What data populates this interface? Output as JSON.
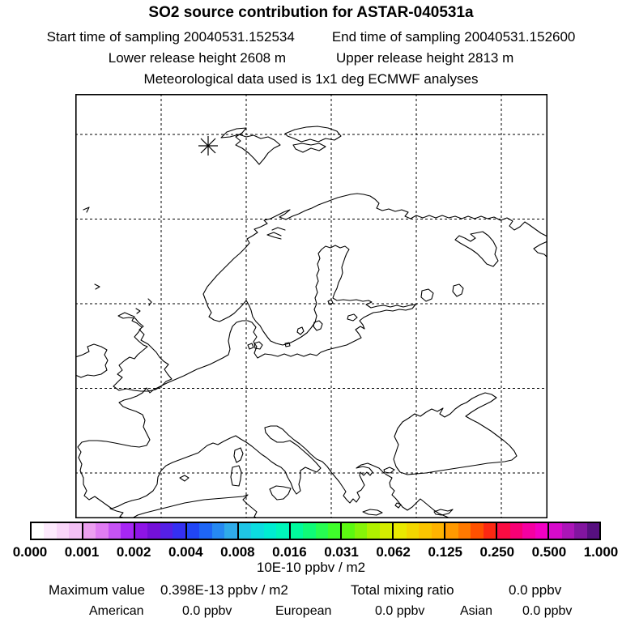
{
  "header": {
    "title": "SO2 source contribution for ASTAR-040531a",
    "start_time": "Start time of sampling 20040531.152534",
    "end_time": "End time of sampling 20040531.152600",
    "lower_release": "Lower release height 2608 m",
    "upper_release": "Upper release height 2813 m",
    "met_data": "Meteorological data used is 1x1 deg ECMWF analyses"
  },
  "map": {
    "marker_name": "release-location-asterisk",
    "grid_style": "dashed",
    "coastline_color": "#000000"
  },
  "colorbar": {
    "tick_labels": [
      "0.000",
      "0.001",
      "0.002",
      "0.004",
      "0.008",
      "0.016",
      "0.031",
      "0.062",
      "0.125",
      "0.250",
      "0.500",
      "1.000"
    ],
    "unit_label": "10E-10 ppbv / m2",
    "segment_colors": [
      [
        "#ffffff",
        "#fdeafd",
        "#f9d6f9",
        "#f3c0f5"
      ],
      [
        "#ec9ff0",
        "#e07cf2",
        "#c653f4",
        "#a727f4"
      ],
      [
        "#8e14e6",
        "#7410d8",
        "#5520e6",
        "#3530f2"
      ],
      [
        "#2146f5",
        "#1e66f6",
        "#2689f2",
        "#2fabe9"
      ],
      [
        "#1fc5e6",
        "#0cdce0",
        "#00ecd2",
        "#00f6ba"
      ],
      [
        "#00fa9d",
        "#0ffb77",
        "#27fd51",
        "#3ffe2b"
      ],
      [
        "#5cf911",
        "#86f408",
        "#b0f000",
        "#d4ed00"
      ],
      [
        "#e9e900",
        "#f2d700",
        "#fbc500",
        "#ffb300"
      ],
      [
        "#ff9900",
        "#ff7900",
        "#ff5100",
        "#fc2812"
      ],
      [
        "#fa0c42",
        "#f80075",
        "#f500a1",
        "#f200c4"
      ],
      [
        "#d60bcb",
        "#ab15b8",
        "#8215a0",
        "#571080"
      ]
    ]
  },
  "stats": {
    "maximum_value_label": "Maximum value",
    "maximum_value": "0.398E-13 ppbv / m2",
    "total_mixing_ratio_label": "Total mixing ratio",
    "total_mixing_ratio_value": "0.0 ppbv",
    "regions": [
      {
        "label": "American",
        "value": "0.0 ppbv"
      },
      {
        "label": "European",
        "value": "0.0 ppbv"
      },
      {
        "label": "Asian",
        "value": "0.0 ppbv"
      }
    ]
  },
  "chart_data": {
    "type": "heatmap",
    "title": "SO2 source contribution for ASTAR-040531a",
    "scale_tick_values": [
      0.0,
      0.001,
      0.002,
      0.004,
      0.008,
      0.016,
      0.031,
      0.062,
      0.125,
      0.25,
      0.5,
      1.0
    ],
    "scale_units": "10E-10 ppbv / m2",
    "maximum_value": "0.398E-13 ppbv / m2",
    "total_mixing_ratio": "0.0 ppbv",
    "series": [
      {
        "name": "American",
        "value": "0.0 ppbv"
      },
      {
        "name": "European",
        "value": "0.0 ppbv"
      },
      {
        "name": "Asian",
        "value": "0.0 ppbv"
      }
    ],
    "layout_hints": {
      "grid": "dashed graticule, ~105px cells, 5 vertical x 5 horizontal interior lines",
      "legend_position": "horizontal colorbar below map",
      "notes": "No shaded concentration field visible; release point marked by asterisk over the Svalbard area of the map."
    }
  }
}
